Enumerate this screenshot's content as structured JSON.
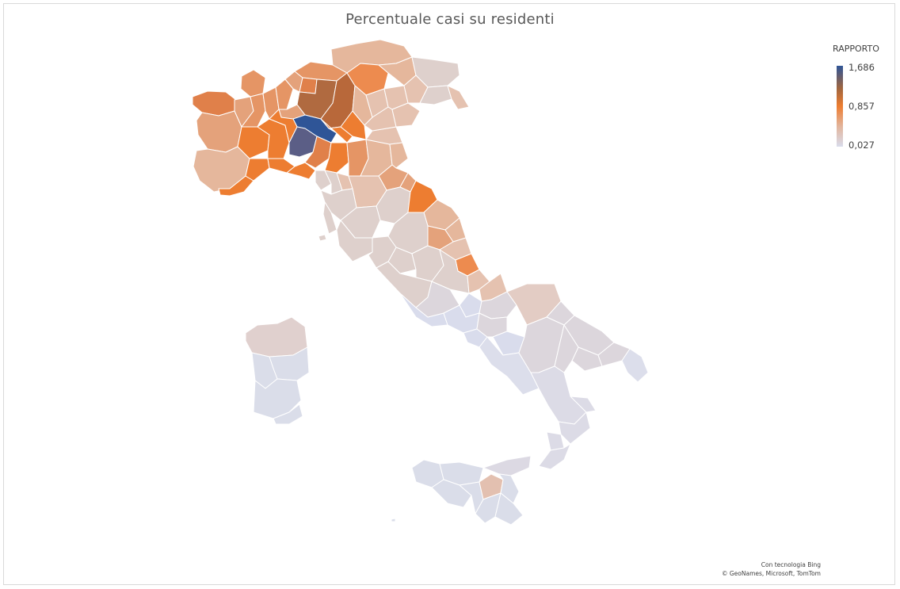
{
  "chart": {
    "title": "Percentuale casi su residenti"
  },
  "legend": {
    "title": "RAPPORTO",
    "max_label": "1,686",
    "mid_label": "0,857",
    "min_label": "0,027"
  },
  "credits": {
    "line1": "Con tecnologia Bing",
    "line2": "© GeoNames, Microsoft, TomTom"
  },
  "colors": {
    "max": "#2f5597",
    "high": "#a1663f",
    "mid": "#ed7d31",
    "low": "#e2b59d",
    "min": "#d9dcec"
  },
  "chart_data": {
    "type": "heatmap",
    "scale": {
      "min": 0.027,
      "mid": 0.857,
      "max": 1.686
    }
  }
}
